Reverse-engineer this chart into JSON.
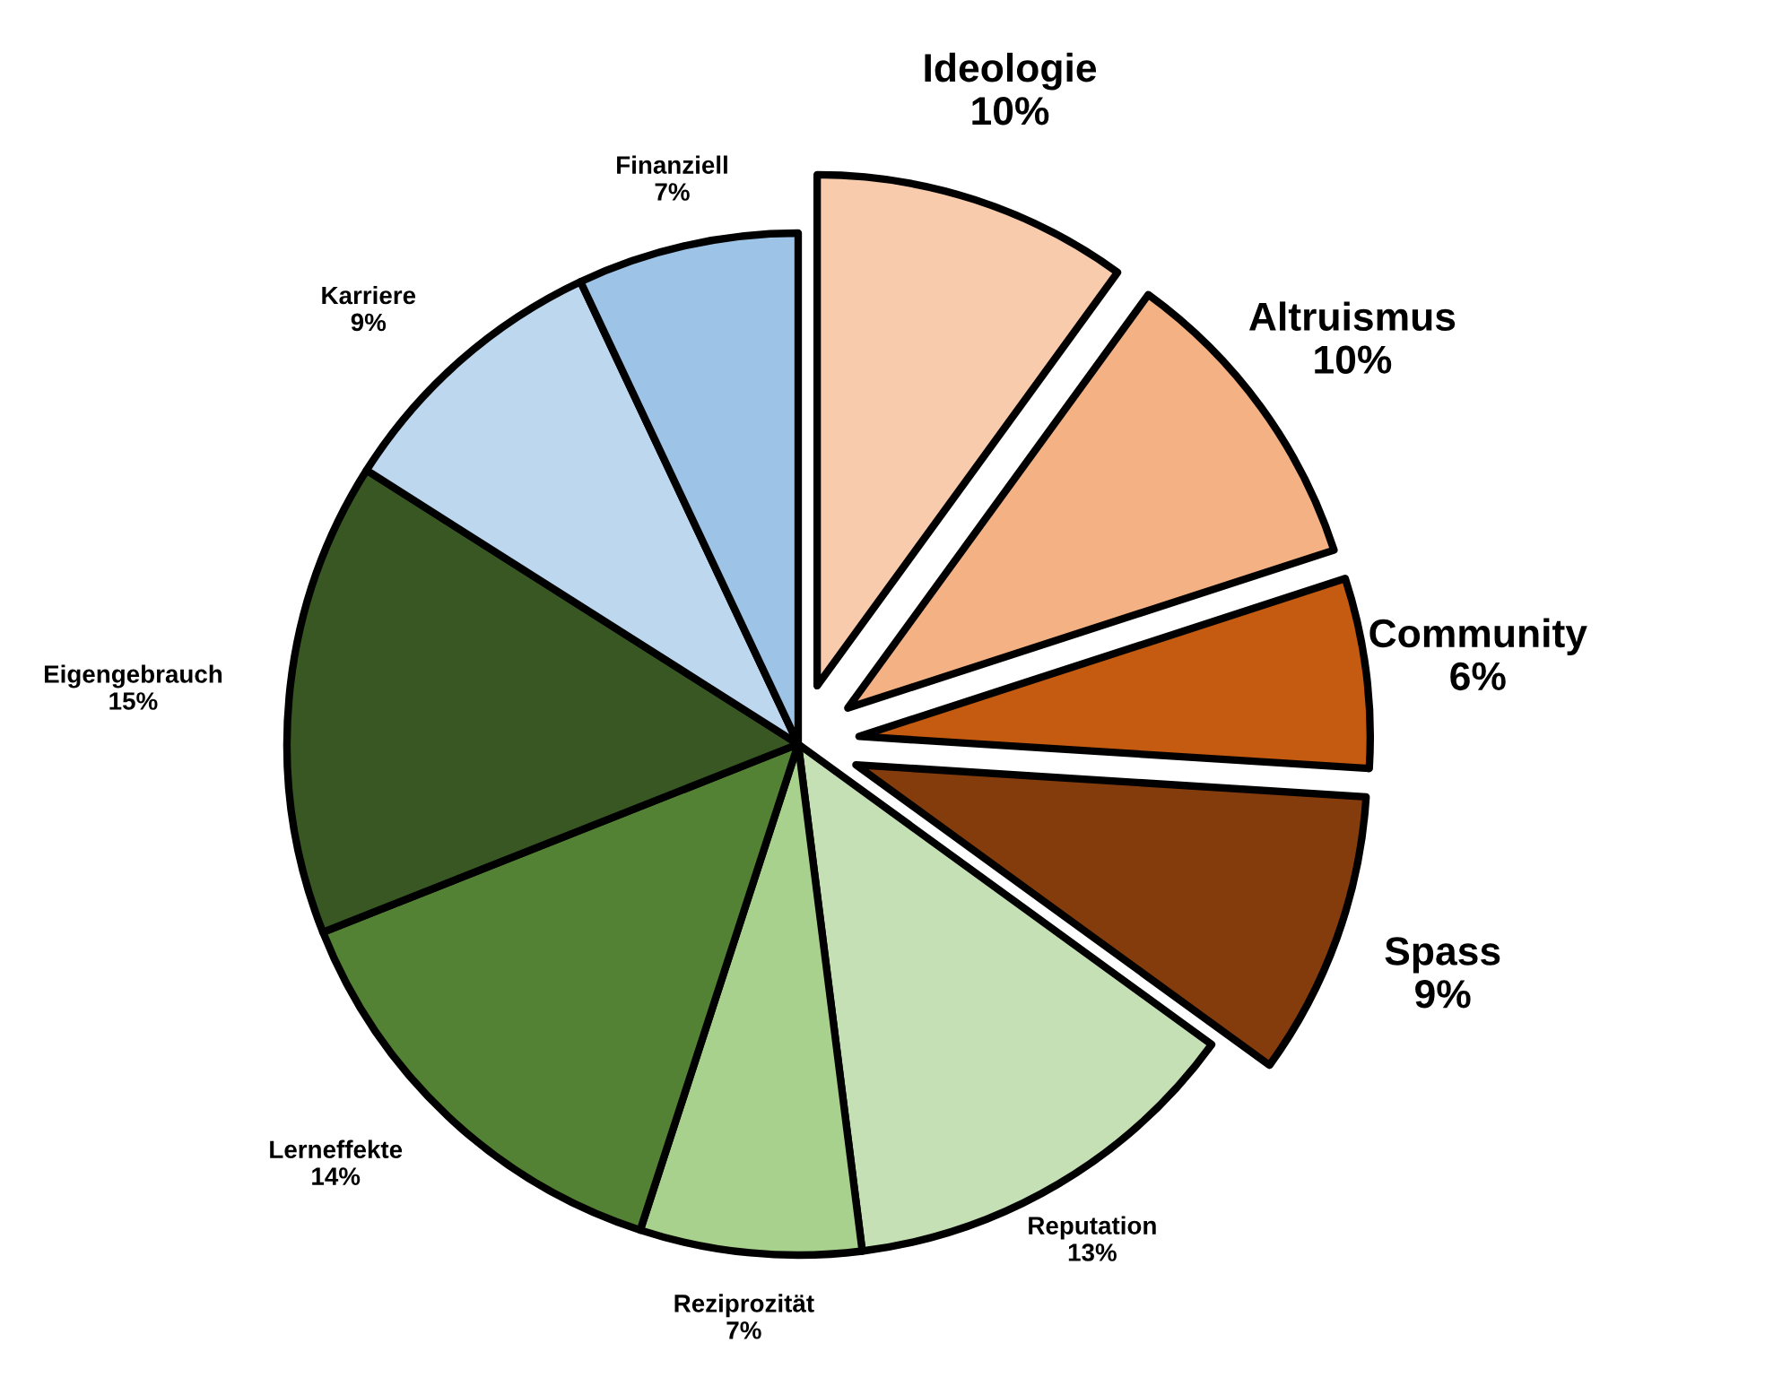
{
  "chart_data": {
    "type": "pie",
    "categories": [
      "Ideologie",
      "Altruismus",
      "Community",
      "Spass",
      "Reputation",
      "Reziprozität",
      "Lerneffekte",
      "Eigengebrauch",
      "Karriere",
      "Finanziell"
    ],
    "values": [
      10,
      10,
      6,
      9,
      13,
      7,
      14,
      15,
      9,
      7
    ],
    "value_labels": [
      "10%",
      "10%",
      "6%",
      "9%",
      "13%",
      "7%",
      "14%",
      "15%",
      "9%",
      "7%"
    ],
    "colors": [
      "#f8cbad",
      "#f4b183",
      "#c55a11",
      "#843c0c",
      "#c5e0b4",
      "#a9d18e",
      "#548235",
      "#385723",
      "#bdd7ee",
      "#9dc3e6"
    ]
  }
}
